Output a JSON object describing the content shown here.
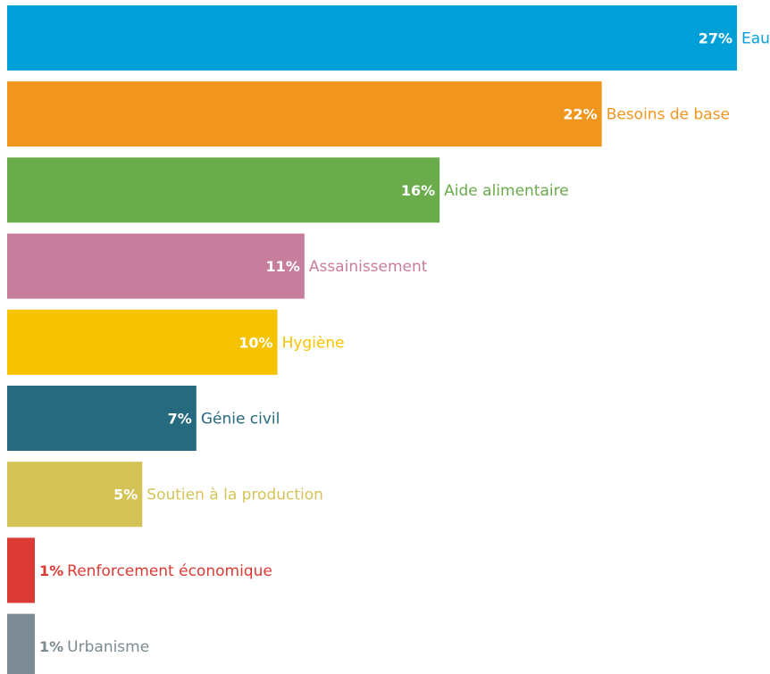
{
  "chart_data": {
    "type": "bar",
    "orientation": "horizontal",
    "title": "",
    "xlabel": "",
    "ylabel": "",
    "xlim": [
      0,
      27
    ],
    "grid": false,
    "legend": "none",
    "unit": "%",
    "bars": [
      {
        "category": "Eau",
        "value": 27,
        "label": "27%",
        "color": "#009fd8",
        "label_color": "#009fd8"
      },
      {
        "category": "Besoins de base",
        "value": 22,
        "label": "22%",
        "color": "#f0961e",
        "label_color": "#f0961e"
      },
      {
        "category": "Aide alimentaire",
        "value": 16,
        "label": "16%",
        "color": "#6aab4c",
        "label_color": "#6aab4c"
      },
      {
        "category": "Assainissement",
        "value": 11,
        "label": "11%",
        "color": "#c77e9c",
        "label_color": "#c77e9c"
      },
      {
        "category": "Hygiène",
        "value": 10,
        "label": "10%",
        "color": "#f6c300",
        "label_color": "#f6c300"
      },
      {
        "category": "Génie civil",
        "value": 7,
        "label": "7%",
        "color": "#256a7f",
        "label_color": "#256a7f"
      },
      {
        "category": "Soutien à la production",
        "value": 5,
        "label": "5%",
        "color": "#d4c458",
        "label_color": "#d4c458"
      },
      {
        "category": "Renforcement économique",
        "value": 1,
        "label": "1%",
        "color": "#dc3a34",
        "label_color": "#dc3a34"
      },
      {
        "category": "Urbanisme",
        "value": 1,
        "label": "1%",
        "color": "#7c8b93",
        "label_color": "#7c8b93"
      }
    ]
  }
}
